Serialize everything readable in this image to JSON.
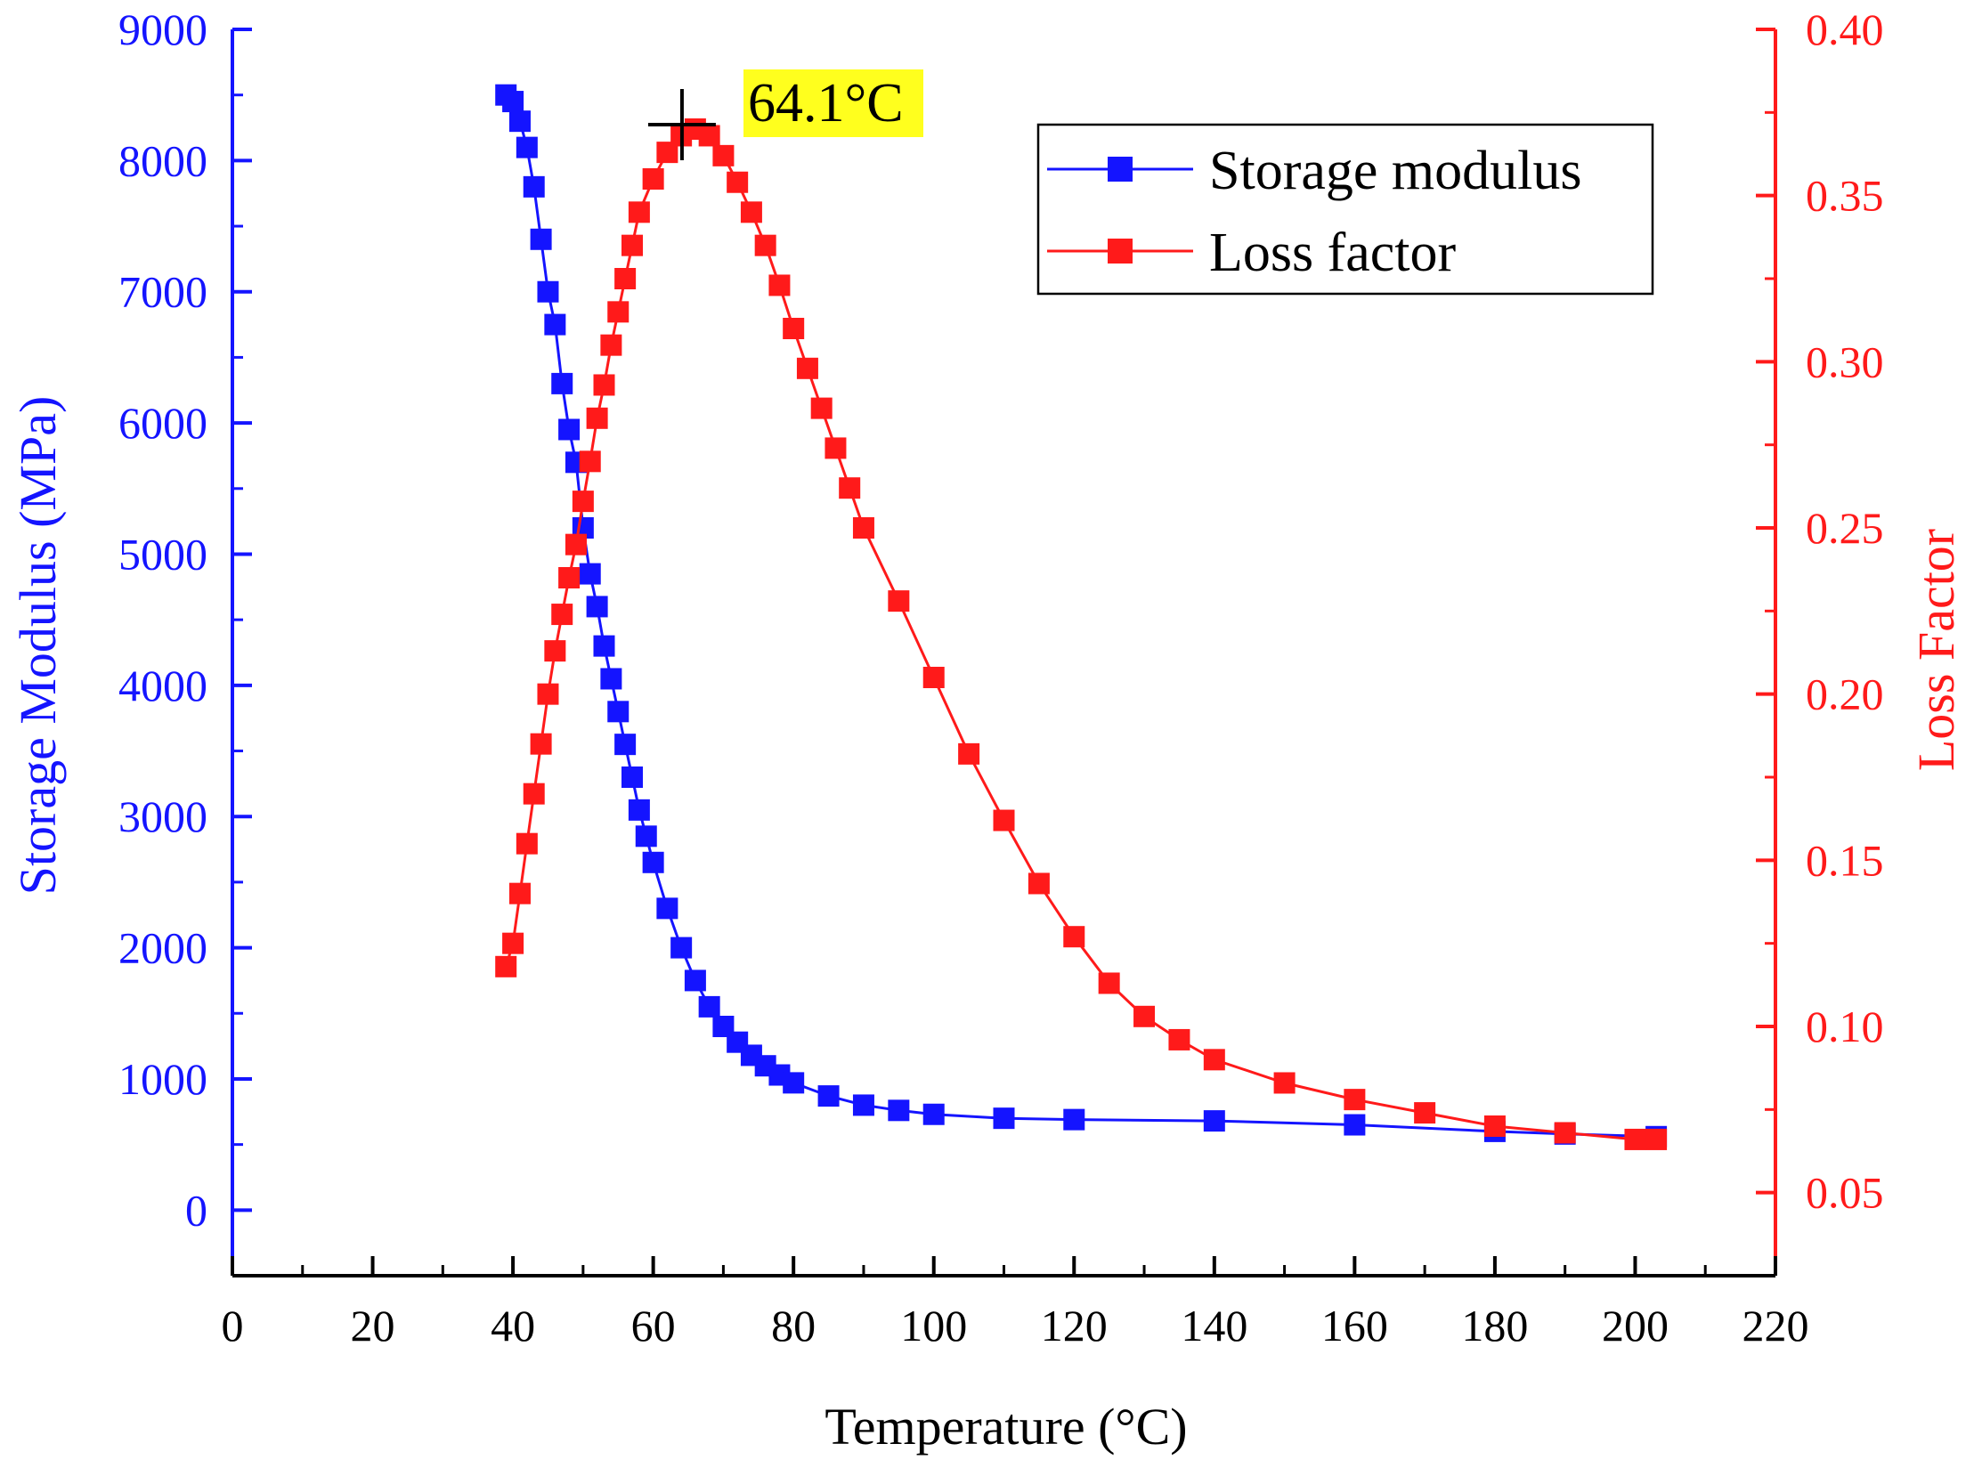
{
  "chart_data": {
    "type": "scatter",
    "title": "",
    "xlabel": "Temperature (°C)",
    "ylabel_left": "Storage Modulus (MPa)",
    "ylabel_right": "Loss Factor",
    "xlim": [
      0,
      220
    ],
    "ylim_left": [
      -500,
      9000
    ],
    "ylim_right": [
      0.025,
      0.4
    ],
    "x_ticks": [
      0,
      20,
      40,
      60,
      80,
      100,
      120,
      140,
      160,
      180,
      200,
      220
    ],
    "x_tick_labels": [
      "0",
      "20",
      "40",
      "60",
      "80",
      "100",
      "120",
      "140",
      "160",
      "180",
      "200",
      "220"
    ],
    "y_left_ticks": [
      0,
      1000,
      2000,
      3000,
      4000,
      5000,
      6000,
      7000,
      8000,
      9000
    ],
    "y_left_tick_labels": [
      "0",
      "1000",
      "2000",
      "3000",
      "4000",
      "5000",
      "6000",
      "7000",
      "8000",
      "9000"
    ],
    "y_right_ticks": [
      0.05,
      0.1,
      0.15,
      0.2,
      0.25,
      0.3,
      0.35,
      0.4
    ],
    "y_right_tick_labels": [
      "0.05",
      "0.10",
      "0.15",
      "0.20",
      "0.25",
      "0.30",
      "0.35",
      "0.40"
    ],
    "grid": false,
    "legend_position": "top-right",
    "colors": {
      "storage": "#1414ff",
      "loss": "#ff1a1a",
      "annotation_bg": "#ffff1e",
      "axis": "#000000"
    },
    "series": [
      {
        "name": "Storage modulus",
        "axis": "left",
        "x": [
          39,
          40,
          41,
          42,
          43,
          44,
          45,
          46,
          47,
          48,
          49,
          50,
          51,
          52,
          53,
          54,
          55,
          56,
          57,
          58,
          59,
          60,
          62,
          64,
          66,
          68,
          70,
          72,
          74,
          76,
          78,
          80,
          85,
          90,
          95,
          100,
          110,
          120,
          140,
          160,
          180,
          190,
          203
        ],
        "values": [
          8500,
          8450,
          8300,
          8100,
          7800,
          7400,
          7000,
          6750,
          6300,
          5950,
          5700,
          5200,
          4850,
          4600,
          4300,
          4050,
          3800,
          3550,
          3300,
          3050,
          2850,
          2650,
          2300,
          2000,
          1750,
          1550,
          1400,
          1280,
          1180,
          1100,
          1030,
          970,
          870,
          800,
          760,
          730,
          700,
          690,
          680,
          650,
          600,
          580,
          560
        ]
      },
      {
        "name": "Loss factor",
        "axis": "right",
        "x": [
          39,
          40,
          41,
          42,
          43,
          44,
          45,
          46,
          47,
          48,
          49,
          50,
          51,
          52,
          53,
          54,
          55,
          56,
          57,
          58,
          60,
          62,
          64,
          66,
          68,
          70,
          72,
          74,
          76,
          78,
          80,
          82,
          84,
          86,
          88,
          90,
          95,
          100,
          105,
          110,
          115,
          120,
          125,
          130,
          135,
          140,
          150,
          160,
          170,
          180,
          190,
          200,
          203
        ],
        "values": [
          0.118,
          0.125,
          0.14,
          0.155,
          0.17,
          0.185,
          0.2,
          0.213,
          0.224,
          0.235,
          0.245,
          0.258,
          0.27,
          0.283,
          0.293,
          0.305,
          0.315,
          0.325,
          0.335,
          0.345,
          0.355,
          0.363,
          0.368,
          0.37,
          0.368,
          0.362,
          0.354,
          0.345,
          0.335,
          0.323,
          0.31,
          0.298,
          0.286,
          0.274,
          0.262,
          0.25,
          0.228,
          0.205,
          0.182,
          0.162,
          0.143,
          0.127,
          0.113,
          0.103,
          0.096,
          0.09,
          0.083,
          0.078,
          0.074,
          0.07,
          0.068,
          0.066,
          0.066
        ]
      }
    ],
    "annotations": [
      {
        "text": "64.1°C",
        "x": 64.1,
        "y_right": 0.37,
        "marker": "crosshair"
      }
    ]
  }
}
